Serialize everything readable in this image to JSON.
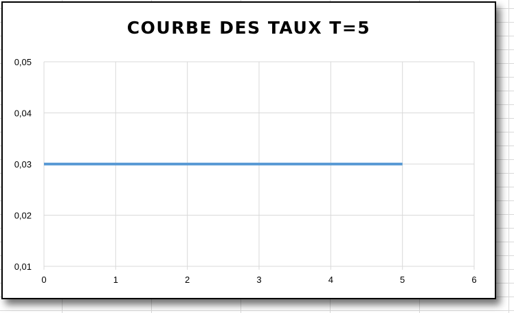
{
  "chart_data": {
    "type": "line",
    "title": "COURBE DES TAUX T=5",
    "xlabel": "",
    "ylabel": "",
    "xlim": [
      0,
      6
    ],
    "ylim": [
      0.01,
      0.05
    ],
    "x_ticks": [
      "0",
      "1",
      "2",
      "3",
      "4",
      "5",
      "6"
    ],
    "y_ticks": [
      "0,01",
      "0,02",
      "0,03",
      "0,04",
      "0,05"
    ],
    "grid": true,
    "legend": "none",
    "series": [
      {
        "x": [
          0,
          1,
          2,
          3,
          4,
          5
        ],
        "values": [
          0.03,
          0.03,
          0.03,
          0.03,
          0.03,
          0.03
        ],
        "color": "#5b9bd5"
      }
    ]
  },
  "colors": {
    "gridline": "#d9d9d9",
    "series": "#5b9bd5"
  }
}
